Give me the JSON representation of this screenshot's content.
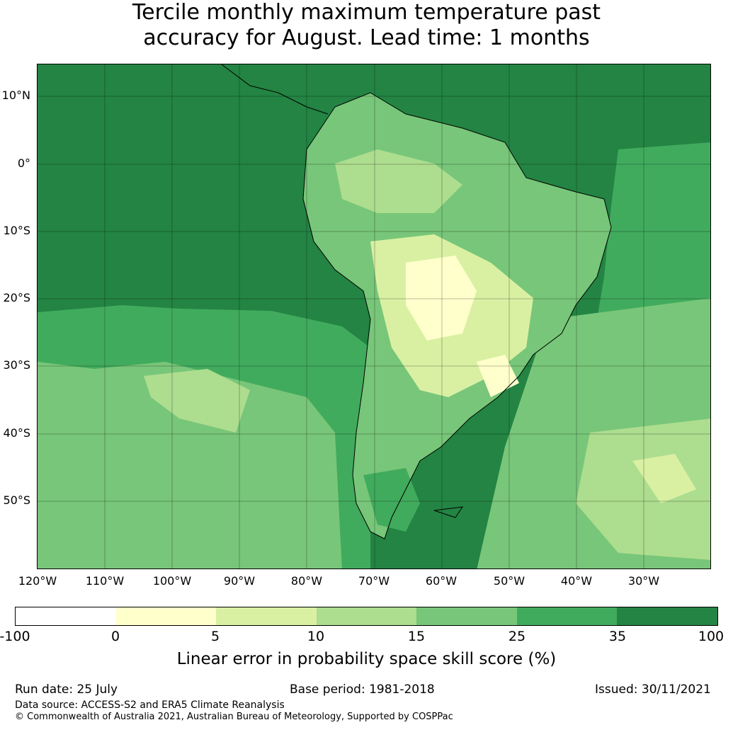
{
  "title_line1": "Tercile monthly maximum temperature past",
  "title_line2": "accuracy for August. Lead time: 1 months",
  "latitude_labels": [
    "10°N",
    "0°",
    "10°S",
    "20°S",
    "30°S",
    "40°S",
    "50°S"
  ],
  "longitude_labels": [
    "120°W",
    "110°W",
    "100°W",
    "90°W",
    "80°W",
    "70°W",
    "60°W",
    "50°W",
    "40°W",
    "30°W"
  ],
  "colorbar": {
    "ticks": [
      "-100",
      "0",
      "5",
      "10",
      "15",
      "25",
      "35",
      "100"
    ],
    "colors": [
      "#ffffff",
      "#ffffcc",
      "#d9f0a3",
      "#addd8e",
      "#78c679",
      "#41ab5d",
      "#238443"
    ],
    "label": "Linear error in probability space skill score (%)"
  },
  "footer": {
    "run_date": "Run date: 25 July",
    "base_period": "Base period: 1981-2018",
    "issued": "Issued: 30/11/2021",
    "data_source": "Data source: ACCESS-S2 and ERA5 Climate Reanalysis",
    "copyright": "© Commonwealth of Australia 2021, Australian Bureau of Meteorology, Supported by COSPPac"
  }
}
